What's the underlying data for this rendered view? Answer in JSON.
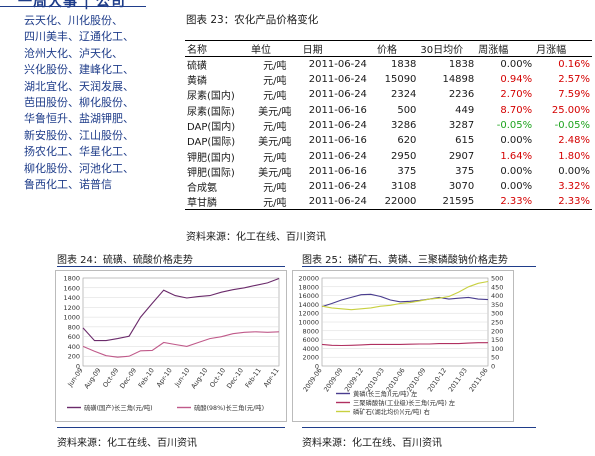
{
  "sidebar": {
    "title": "一周大事 | 公司",
    "lines": [
      "云天化、川化股份、",
      "四川美丰、辽通化工、",
      "沧州大化、泸天化、",
      "兴化股份、建峰化工、",
      "湖北宜化、天润发展、",
      "芭田股份、柳化股份、",
      "华鲁恒升、盐湖钾肥、",
      "新安股份、江山股份、",
      "扬农化工、华星化工、",
      "柳化股份、河池化工、",
      "鲁西化工、诺普信"
    ]
  },
  "table23": {
    "caption": "图表 23：农化产品价格变化",
    "headers": [
      "名称",
      "单位",
      "日期",
      "价格",
      "30日均价",
      "周涨幅",
      "月涨幅"
    ],
    "rows": [
      {
        "name": "硫磺",
        "unit": "元/吨",
        "date": "2011-06-24",
        "price": "1838",
        "avg30": "1838",
        "week": "0.00%",
        "month": "0.16%",
        "wc": "",
        "mc": "red"
      },
      {
        "name": "黄磷",
        "unit": "元/吨",
        "date": "2011-06-24",
        "price": "15090",
        "avg30": "14898",
        "week": "0.94%",
        "month": "2.57%",
        "wc": "red",
        "mc": "red"
      },
      {
        "name": "尿素(国内)",
        "unit": "元/吨",
        "date": "2011-06-24",
        "price": "2324",
        "avg30": "2236",
        "week": "2.70%",
        "month": "7.59%",
        "wc": "red",
        "mc": "red"
      },
      {
        "name": "尿素(国际)",
        "unit": "美元/吨",
        "date": "2011-06-16",
        "price": "500",
        "avg30": "449",
        "week": "8.70%",
        "month": "25.00%",
        "wc": "red",
        "mc": "red"
      },
      {
        "name": "DAP(国内)",
        "unit": "元/吨",
        "date": "2011-06-24",
        "price": "3286",
        "avg30": "3287",
        "week": "-0.05%",
        "month": "-0.05%",
        "wc": "grn",
        "mc": "grn"
      },
      {
        "name": "DAP(国际)",
        "unit": "美元/吨",
        "date": "2011-06-16",
        "price": "620",
        "avg30": "615",
        "week": "0.00%",
        "month": "2.48%",
        "wc": "",
        "mc": "red"
      },
      {
        "name": "钾肥(国内)",
        "unit": "元/吨",
        "date": "2011-06-24",
        "price": "2950",
        "avg30": "2907",
        "week": "1.64%",
        "month": "1.80%",
        "wc": "red",
        "mc": "red"
      },
      {
        "name": "钾肥(国际)",
        "unit": "美元/吨",
        "date": "2011-06-16",
        "price": "375",
        "avg30": "375",
        "week": "0.00%",
        "month": "0.00%",
        "wc": "",
        "mc": ""
      },
      {
        "name": "合成氨",
        "unit": "元/吨",
        "date": "2011-06-24",
        "price": "3108",
        "avg30": "3070",
        "week": "0.00%",
        "month": "3.32%",
        "wc": "",
        "mc": "red"
      },
      {
        "name": "草甘膦",
        "unit": "元/吨",
        "date": "2011-06-24",
        "price": "22000",
        "avg30": "21595",
        "week": "2.33%",
        "month": "2.33%",
        "wc": "red",
        "mc": "red"
      }
    ],
    "source": "资料来源：化工在线、百川资讯"
  },
  "chart24": {
    "caption": "图表 24：硫磺、硫酸价格走势",
    "source": "资料来源：化工在线、百川资讯"
  },
  "chart25": {
    "caption": "图表 25：磷矿石、黄磷、三聚磷酸钠价格走势",
    "source": "资料来源：化工在线、百川资讯"
  },
  "chart_data": [
    {
      "type": "line",
      "ylim": [
        0,
        1800
      ],
      "yticks": [
        "0",
        "200",
        "400",
        "600",
        "800",
        "1000",
        "1200",
        "1400",
        "1600",
        "1800"
      ],
      "xticks": [
        "Jun-09",
        "Aug-09",
        "Oct-09",
        "Dec-09",
        "Feb-10",
        "Apr-10",
        "Jun-10",
        "Aug-10",
        "Oct-10",
        "Dec-10",
        "Feb-11",
        "Apr-11"
      ],
      "series": [
        {
          "name": "硫磺(国产)长三角(元/吨)",
          "color": "#6b2b6b",
          "values": [
            780,
            520,
            520,
            560,
            610,
            1000,
            1280,
            1550,
            1440,
            1390,
            1420,
            1440,
            1510,
            1560,
            1600,
            1650,
            1700,
            1790
          ]
        },
        {
          "name": "硫酸(98%)长三角(元/吨)",
          "color": "#c05a8a",
          "values": [
            400,
            300,
            210,
            180,
            200,
            310,
            320,
            480,
            440,
            400,
            480,
            560,
            600,
            660,
            690,
            700,
            690,
            700
          ]
        }
      ]
    },
    {
      "type": "line",
      "ylim_left": [
        0,
        20000
      ],
      "ylim_right": [
        0,
        500
      ],
      "yticks_left": [
        "0",
        "2000",
        "4000",
        "6000",
        "8000",
        "10000",
        "12000",
        "14000",
        "16000",
        "18000",
        "20000"
      ],
      "yticks_right": [
        "0",
        "50",
        "100",
        "150",
        "200",
        "250",
        "300",
        "350",
        "400",
        "450",
        "500"
      ],
      "xticks": [
        "2009-06",
        "2009-09",
        "2009-12",
        "2010-03",
        "2010-06",
        "2010-09",
        "2010-12",
        "2011-03",
        "2011-06"
      ],
      "series": [
        {
          "name": "黄磷(长三角)(元/吨)",
          "axis": "左",
          "color": "#4a3d8f",
          "values": [
            13500,
            14200,
            15000,
            15600,
            16200,
            16300,
            15800,
            15000,
            14600,
            14700,
            14900,
            15200,
            15600,
            15200,
            15400,
            15600,
            15200,
            15090
          ]
        },
        {
          "name": "三聚磷酸钠(工业级)长三角(元/吨)",
          "axis": "左",
          "color": "#b03060",
          "values": [
            4900,
            4700,
            4650,
            4700,
            4800,
            4900,
            4900,
            4900,
            4900,
            4950,
            5000,
            5000,
            5100,
            5100,
            5100,
            5200,
            5300,
            5300
          ]
        },
        {
          "name": "磷矿石(湖北均价)(元/吨)",
          "axis": "右",
          "color": "#c8d040",
          "values": [
            340,
            330,
            325,
            320,
            325,
            330,
            340,
            345,
            355,
            360,
            370,
            380,
            385,
            395,
            420,
            450,
            470,
            480
          ]
        }
      ]
    }
  ]
}
